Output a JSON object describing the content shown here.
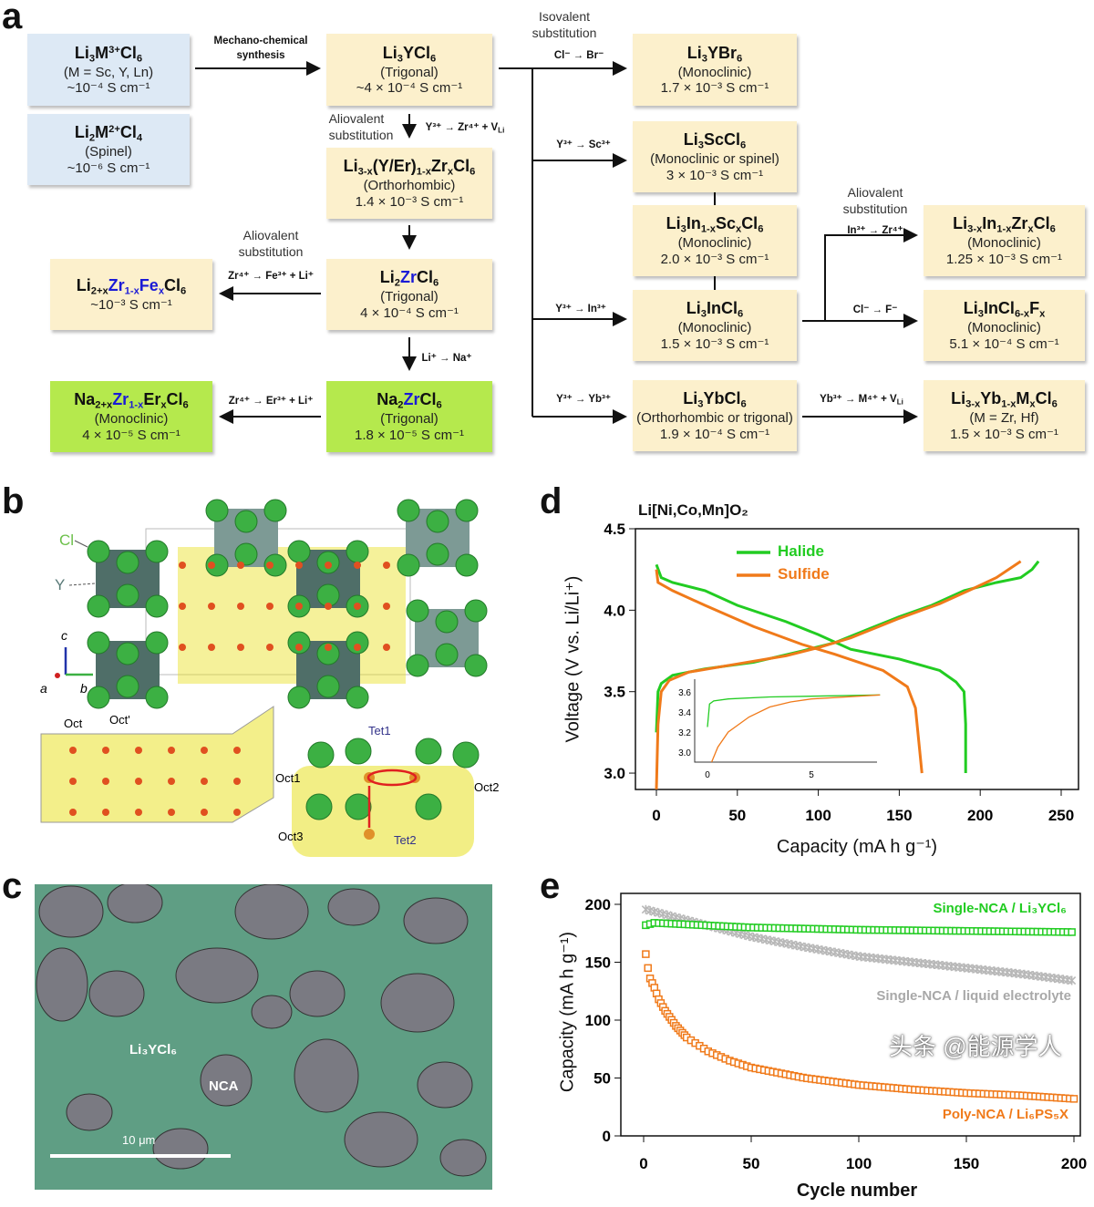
{
  "panel_letters": {
    "a": "a",
    "b": "b",
    "c": "c",
    "d": "d",
    "e": "e"
  },
  "panel_a": {
    "boxes": [
      {
        "formula": [
          [
            "Li"
          ],
          [
            "3",
            "sub"
          ],
          [
            "M"
          ],
          [
            "3+",
            "sup"
          ],
          [
            "Cl"
          ],
          [
            "6",
            "sub"
          ]
        ],
        "lines": [
          "(M = Sc, Y, Ln)",
          "~10⁻⁴ S cm⁻¹"
        ],
        "color": "blue"
      },
      {
        "formula": [
          [
            "Li"
          ],
          [
            "2",
            "sub"
          ],
          [
            "M"
          ],
          [
            "2+",
            "sup"
          ],
          [
            "Cl"
          ],
          [
            "4",
            "sub"
          ]
        ],
        "lines": [
          "(Spinel)",
          "~10⁻⁶ S cm⁻¹"
        ],
        "color": "blue"
      },
      {
        "formula": [
          [
            "Li"
          ],
          [
            "3",
            "sub"
          ],
          [
            "YCl"
          ],
          [
            "6",
            "sub"
          ]
        ],
        "lines": [
          "(Trigonal)",
          "~4 × 10⁻⁴ S cm⁻¹"
        ],
        "color": "yellow"
      },
      {
        "formula": [
          [
            "Li"
          ],
          [
            "3-x",
            "sub"
          ],
          [
            "(Y/Er)"
          ],
          [
            "1-x",
            "sub"
          ],
          [
            "Zr"
          ],
          [
            "x",
            "sub"
          ],
          [
            "Cl"
          ],
          [
            "6",
            "sub"
          ]
        ],
        "lines": [
          "(Orthorhombic)",
          "1.4 × 10⁻³ S cm⁻¹"
        ],
        "color": "yellow"
      },
      {
        "formula": [
          [
            "Li"
          ],
          [
            "2",
            "sub"
          ],
          [
            "Zr",
            "b"
          ],
          [
            "Cl"
          ],
          [
            "6",
            "sub"
          ]
        ],
        "lines": [
          "(Trigonal)",
          "4 × 10⁻⁴ S cm⁻¹"
        ],
        "color": "yellow"
      },
      {
        "formula": [
          [
            "Na"
          ],
          [
            "2",
            "sub"
          ],
          [
            "Zr",
            "b"
          ],
          [
            "Cl"
          ],
          [
            "6",
            "sub"
          ]
        ],
        "lines": [
          "(Trigonal)",
          "1.8 × 10⁻⁵ S cm⁻¹"
        ],
        "color": "green"
      },
      {
        "formula": [
          [
            "Li"
          ],
          [
            "2+x",
            "sub"
          ],
          [
            "Zr",
            "b"
          ],
          [
            "1-x",
            "bsub"
          ],
          [
            "Fe",
            "b"
          ],
          [
            "x",
            "bsub"
          ],
          [
            "Cl"
          ],
          [
            "6",
            "sub"
          ]
        ],
        "lines": [
          "~10⁻³ S cm⁻¹"
        ],
        "color": "yellow"
      },
      {
        "formula": [
          [
            "Na"
          ],
          [
            "2+x",
            "sub"
          ],
          [
            "Zr",
            "b"
          ],
          [
            "1-x",
            "bsub"
          ],
          [
            "Er"
          ],
          [
            "x",
            "sub"
          ],
          [
            "Cl"
          ],
          [
            "6",
            "sub"
          ]
        ],
        "lines": [
          "(Monoclinic)",
          "4 × 10⁻⁵ S cm⁻¹"
        ],
        "color": "green"
      },
      {
        "formula": [
          [
            "Li"
          ],
          [
            "3",
            "sub"
          ],
          [
            "YBr"
          ],
          [
            "6",
            "sub"
          ]
        ],
        "lines": [
          "(Monoclinic)",
          "1.7 × 10⁻³ S cm⁻¹"
        ],
        "color": "yellow"
      },
      {
        "formula": [
          [
            "Li"
          ],
          [
            "3",
            "sub"
          ],
          [
            "ScCl"
          ],
          [
            "6",
            "sub"
          ]
        ],
        "lines": [
          "(Monoclinic or spinel)",
          "3 × 10⁻³ S cm⁻¹"
        ],
        "color": "yellow"
      },
      {
        "formula": [
          [
            "Li"
          ],
          [
            "3",
            "sub"
          ],
          [
            "In"
          ],
          [
            "1-x",
            "sub"
          ],
          [
            "Sc"
          ],
          [
            "x",
            "sub"
          ],
          [
            "Cl"
          ],
          [
            "6",
            "sub"
          ]
        ],
        "lines": [
          "(Monoclinic)",
          "2.0 × 10⁻³ S cm⁻¹"
        ],
        "color": "yellow"
      },
      {
        "formula": [
          [
            "Li"
          ],
          [
            "3",
            "sub"
          ],
          [
            "InCl"
          ],
          [
            "6",
            "sub"
          ]
        ],
        "lines": [
          "(Monoclinic)",
          "1.5 × 10⁻³ S cm⁻¹"
        ],
        "color": "yellow"
      },
      {
        "formula": [
          [
            "Li"
          ],
          [
            "3",
            "sub"
          ],
          [
            "YbCl"
          ],
          [
            "6",
            "sub"
          ]
        ],
        "lines": [
          "(Orthorhombic or trigonal)",
          "1.9 × 10⁻⁴ S cm⁻¹"
        ],
        "color": "yellow"
      },
      {
        "formula": [
          [
            "Li"
          ],
          [
            "3-x",
            "sub"
          ],
          [
            "In"
          ],
          [
            "1-x",
            "sub"
          ],
          [
            "Zr"
          ],
          [
            "x",
            "sub"
          ],
          [
            "Cl"
          ],
          [
            "6",
            "sub"
          ]
        ],
        "lines": [
          "(Monoclinic)",
          "1.25 × 10⁻³ S cm⁻¹"
        ],
        "color": "yellow"
      },
      {
        "formula": [
          [
            "Li"
          ],
          [
            "3",
            "sub"
          ],
          [
            "InCl"
          ],
          [
            "6-x",
            "sub"
          ],
          [
            "F"
          ],
          [
            "x",
            "sub"
          ]
        ],
        "lines": [
          "(Monoclinic)",
          "5.1 × 10⁻⁴ S cm⁻¹"
        ],
        "color": "yellow"
      },
      {
        "formula": [
          [
            "Li"
          ],
          [
            "3-x",
            "sub"
          ],
          [
            "Yb"
          ],
          [
            "1-x",
            "sub"
          ],
          [
            "M"
          ],
          [
            "x",
            "sub"
          ],
          [
            "Cl"
          ],
          [
            "6",
            "sub"
          ]
        ],
        "lines": [
          "(M = Zr, Hf)",
          "1.5 × 10⁻³ S cm⁻¹"
        ],
        "color": "yellow"
      }
    ],
    "labels": {
      "mechano": [
        "Mechano-chemical",
        "synthesis"
      ],
      "isovalent": [
        "Isovalent",
        "substitution"
      ],
      "aliovalent_1": [
        "Aliovalent",
        "substitution"
      ],
      "aliovalent_2": [
        "Aliovalent",
        "substitution"
      ],
      "aliovalent_3": [
        "Aliovalent",
        "substitution"
      ],
      "y_to_zr": [
        [
          "Y³⁺ → Zr⁴⁺ + V"
        ],
        [
          "Li",
          "sub"
        ]
      ],
      "zr_to_fe": [
        [
          "Zr⁴⁺ → Fe³⁺ + Li⁺"
        ]
      ],
      "li_to_na": [
        [
          "Li⁺ → Na⁺"
        ]
      ],
      "zr_to_er": [
        [
          "Zr⁴⁺ → Er³⁺ + Li⁺"
        ]
      ],
      "cl_to_br": [
        [
          "Cl⁻ → Br⁻"
        ]
      ],
      "y_to_sc": [
        [
          "Y³⁺ → Sc³⁺"
        ]
      ],
      "y_to_in": [
        [
          "Y³⁺ → In³⁺"
        ]
      ],
      "y_to_yb": [
        [
          "Y³⁺ → Yb³⁺"
        ]
      ],
      "in_to_zr": [
        [
          "In³⁺ → Zr⁴⁺"
        ]
      ],
      "cl_to_f": [
        [
          "Cl⁻ → F⁻"
        ]
      ],
      "yb_to_m": [
        [
          "Yb³⁺ → M⁴⁺ + V"
        ],
        [
          "Li",
          "sub"
        ]
      ]
    }
  },
  "panel_b": {
    "labels": {
      "cl": "Cl",
      "y": "Y",
      "axis_a": "a",
      "axis_b": "b",
      "axis_c": "c",
      "oct": "Oct",
      "oct_prime": "Oct'",
      "oct1": "Oct1",
      "oct2": "Oct2",
      "oct3": "Oct3",
      "tet1": "Tet1",
      "tet2": "Tet2"
    },
    "colors": {
      "cl_atom": "#3cb043",
      "y_octahedron": "#4f6e68",
      "li_density": "#e8e020",
      "li_site": "#e05020"
    }
  },
  "panel_c": {
    "labels": {
      "electrolyte": "Li₃YCl₆",
      "cathode": "NCA",
      "scale_bar": "10 μm"
    },
    "colors": {
      "electrolyte": "#5f9e84",
      "cathode": "#7a7a82"
    }
  },
  "chart_data": [
    {
      "type": "line",
      "title": "Li[Ni,Co,Mn]O₂",
      "xlabel": "Capacity (mA h g⁻¹)",
      "ylabel": "Voltage (V vs. Li/Li⁺)",
      "xlim": [
        -5,
        262
      ],
      "ylim": [
        2.9,
        4.5
      ],
      "xticks": [
        "0",
        "50",
        "100",
        "150",
        "200",
        "250"
      ],
      "yticks": [
        "3.0",
        "3.5",
        "4.0",
        "4.5"
      ],
      "legend_position": "top-left",
      "grid": false,
      "series": [
        {
          "name": "Halide",
          "color": "#22cc22",
          "charge": [
            [
              0,
              3.25
            ],
            [
              1,
              3.5
            ],
            [
              3,
              3.55
            ],
            [
              10,
              3.6
            ],
            [
              30,
              3.64
            ],
            [
              60,
              3.68
            ],
            [
              90,
              3.75
            ],
            [
              110,
              3.8
            ],
            [
              130,
              3.88
            ],
            [
              150,
              3.96
            ],
            [
              170,
              4.03
            ],
            [
              190,
              4.12
            ],
            [
              210,
              4.17
            ],
            [
              225,
              4.2
            ],
            [
              232,
              4.25
            ],
            [
              236,
              4.3
            ]
          ],
          "discharge": [
            [
              0,
              4.28
            ],
            [
              3,
              4.2
            ],
            [
              10,
              4.17
            ],
            [
              30,
              4.12
            ],
            [
              50,
              4.03
            ],
            [
              80,
              3.93
            ],
            [
              100,
              3.85
            ],
            [
              120,
              3.76
            ],
            [
              150,
              3.7
            ],
            [
              175,
              3.63
            ],
            [
              185,
              3.56
            ],
            [
              190,
              3.5
            ],
            [
              191,
              3.3
            ],
            [
              191,
              3.0
            ]
          ]
        },
        {
          "name": "Sulfide",
          "color": "#f07a1a",
          "charge": [
            [
              0,
              2.9
            ],
            [
              1,
              3.3
            ],
            [
              3,
              3.5
            ],
            [
              8,
              3.57
            ],
            [
              20,
              3.62
            ],
            [
              50,
              3.67
            ],
            [
              80,
              3.72
            ],
            [
              100,
              3.77
            ],
            [
              120,
              3.83
            ],
            [
              150,
              3.95
            ],
            [
              175,
              4.04
            ],
            [
              195,
              4.13
            ],
            [
              210,
              4.2
            ],
            [
              225,
              4.3
            ]
          ],
          "discharge": [
            [
              0,
              4.25
            ],
            [
              1,
              4.17
            ],
            [
              10,
              4.12
            ],
            [
              30,
              4.03
            ],
            [
              60,
              3.9
            ],
            [
              90,
              3.79
            ],
            [
              110,
              3.73
            ],
            [
              140,
              3.63
            ],
            [
              155,
              3.53
            ],
            [
              160,
              3.4
            ],
            [
              162,
              3.2
            ],
            [
              164,
              3.0
            ]
          ]
        }
      ],
      "inset": {
        "xlim": [
          -1,
          8.3
        ],
        "ylim": [
          2.9,
          3.65
        ],
        "xticks": [
          "0",
          "5"
        ],
        "yticks": [
          "3.0",
          "3.2",
          "3.4",
          "3.6"
        ],
        "series": [
          {
            "name": "Halide",
            "color": "#22cc22",
            "points": [
              [
                0,
                3.25
              ],
              [
                0.1,
                3.48
              ],
              [
                0.3,
                3.51
              ],
              [
                1,
                3.53
              ],
              [
                3,
                3.55
              ],
              [
                8.3,
                3.57
              ]
            ]
          },
          {
            "name": "Sulfide",
            "color": "#f07a1a",
            "points": [
              [
                0.2,
                2.9
              ],
              [
                0.5,
                3.05
              ],
              [
                1,
                3.2
              ],
              [
                2,
                3.35
              ],
              [
                3,
                3.45
              ],
              [
                4,
                3.5
              ],
              [
                5,
                3.53
              ],
              [
                8.3,
                3.57
              ]
            ]
          }
        ]
      }
    },
    {
      "type": "scatter",
      "xlabel": "Cycle number",
      "ylabel": "Capacity (mA h g⁻¹)",
      "xlim": [
        -8,
        205
      ],
      "ylim": [
        0,
        210
      ],
      "xticks": [
        "0",
        "50",
        "100",
        "150",
        "200"
      ],
      "yticks": [
        "0",
        "50",
        "100",
        "150",
        "200"
      ],
      "grid": false,
      "series": [
        {
          "name": "Single-NCA / Li₃YCl₆",
          "color": "#22cc22",
          "marker": "open-square",
          "points": [
            [
              1,
              182
            ],
            [
              5,
              184
            ],
            [
              50,
              180
            ],
            [
              100,
              178
            ],
            [
              150,
              177
            ],
            [
              200,
              176
            ]
          ]
        },
        {
          "name": "Single-NCA / liquid electrolyte",
          "color": "#b8b8b8",
          "marker": "star",
          "points": [
            [
              0,
              196
            ],
            [
              25,
              184
            ],
            [
              50,
              172
            ],
            [
              75,
              163
            ],
            [
              100,
              155
            ],
            [
              125,
              150
            ],
            [
              150,
              145
            ],
            [
              175,
              140
            ],
            [
              200,
              134
            ]
          ]
        },
        {
          "name": "Poly-NCA / Li₆PS₅X",
          "color": "#f07a1a",
          "marker": "open-square",
          "points": [
            [
              1,
              157
            ],
            [
              2,
              145
            ],
            [
              3,
              136
            ],
            [
              5,
              128
            ],
            [
              7,
              118
            ],
            [
              10,
              108
            ],
            [
              15,
              95
            ],
            [
              20,
              85
            ],
            [
              30,
              73
            ],
            [
              40,
              65
            ],
            [
              50,
              59
            ],
            [
              75,
              50
            ],
            [
              100,
              44
            ],
            [
              125,
              40
            ],
            [
              150,
              37
            ],
            [
              175,
              35
            ],
            [
              200,
              32
            ]
          ]
        }
      ]
    }
  ],
  "watermark": "头条 @能源学人"
}
